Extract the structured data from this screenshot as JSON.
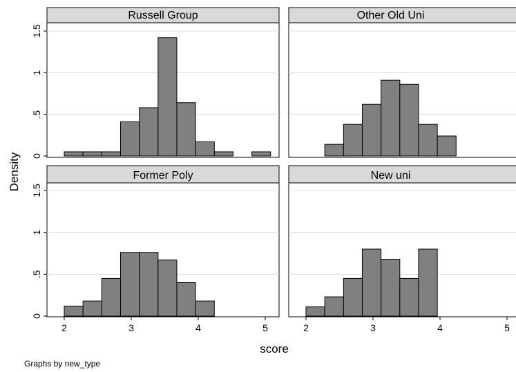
{
  "chart_data": {
    "type": "bar",
    "ylabel": "Density",
    "xlabel": "score",
    "note": "Graphs by new_type",
    "xlim": [
      1.75,
      5.15
    ],
    "ylim": [
      0,
      1.6
    ],
    "xticks": [
      "2",
      "3",
      "4",
      "5"
    ],
    "yticks": [
      "0",
      ".5",
      "1",
      "1.5"
    ],
    "grid": true,
    "bar_color": "#808080",
    "panels": [
      {
        "title": "Russell Group",
        "bins": [
          {
            "x0": 2.0,
            "x1": 2.28,
            "value": 0.05
          },
          {
            "x0": 2.28,
            "x1": 2.56,
            "value": 0.05
          },
          {
            "x0": 2.56,
            "x1": 2.84,
            "value": 0.05
          },
          {
            "x0": 2.84,
            "x1": 3.12,
            "value": 0.41
          },
          {
            "x0": 3.12,
            "x1": 3.4,
            "value": 0.58
          },
          {
            "x0": 3.4,
            "x1": 3.68,
            "value": 1.42
          },
          {
            "x0": 3.68,
            "x1": 3.96,
            "value": 0.64
          },
          {
            "x0": 3.96,
            "x1": 4.24,
            "value": 0.17
          },
          {
            "x0": 4.24,
            "x1": 4.52,
            "value": 0.05
          },
          {
            "x0": 4.8,
            "x1": 5.08,
            "value": 0.05
          }
        ]
      },
      {
        "title": "Other Old Uni",
        "bins": [
          {
            "x0": 2.28,
            "x1": 2.56,
            "value": 0.14
          },
          {
            "x0": 2.56,
            "x1": 2.84,
            "value": 0.38
          },
          {
            "x0": 2.84,
            "x1": 3.12,
            "value": 0.62
          },
          {
            "x0": 3.12,
            "x1": 3.4,
            "value": 0.91
          },
          {
            "x0": 3.4,
            "x1": 3.68,
            "value": 0.86
          },
          {
            "x0": 3.68,
            "x1": 3.96,
            "value": 0.38
          },
          {
            "x0": 3.96,
            "x1": 4.24,
            "value": 0.24
          }
        ]
      },
      {
        "title": "Former Poly",
        "bins": [
          {
            "x0": 2.0,
            "x1": 2.28,
            "value": 0.12
          },
          {
            "x0": 2.28,
            "x1": 2.56,
            "value": 0.18
          },
          {
            "x0": 2.56,
            "x1": 2.84,
            "value": 0.45
          },
          {
            "x0": 2.84,
            "x1": 3.12,
            "value": 0.76
          },
          {
            "x0": 3.12,
            "x1": 3.4,
            "value": 0.76
          },
          {
            "x0": 3.4,
            "x1": 3.68,
            "value": 0.67
          },
          {
            "x0": 3.68,
            "x1": 3.96,
            "value": 0.4
          },
          {
            "x0": 3.96,
            "x1": 4.24,
            "value": 0.18
          }
        ]
      },
      {
        "title": "New uni",
        "bins": [
          {
            "x0": 2.0,
            "x1": 2.28,
            "value": 0.11
          },
          {
            "x0": 2.28,
            "x1": 2.56,
            "value": 0.23
          },
          {
            "x0": 2.56,
            "x1": 2.84,
            "value": 0.45
          },
          {
            "x0": 2.84,
            "x1": 3.12,
            "value": 0.8
          },
          {
            "x0": 3.12,
            "x1": 3.4,
            "value": 0.68
          },
          {
            "x0": 3.4,
            "x1": 3.68,
            "value": 0.45
          },
          {
            "x0": 3.68,
            "x1": 3.96,
            "value": 0.8
          }
        ]
      }
    ]
  }
}
